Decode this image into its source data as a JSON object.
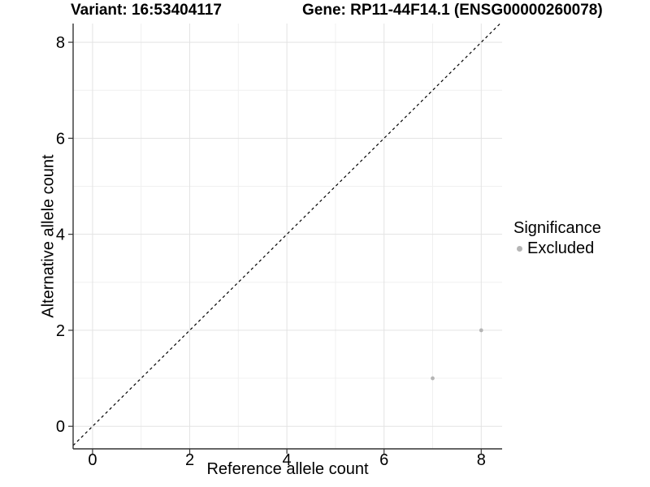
{
  "titles": {
    "variant": "Variant: 16:53404117",
    "gene": "Gene: RP11-44F14.1 (ENSG00000260078)"
  },
  "legend": {
    "title": "Significance",
    "items": [
      {
        "label": "Excluded",
        "color": "#b5b5b5"
      }
    ]
  },
  "colors": {
    "background": "#ffffff",
    "grid_major": "#e3e3e3",
    "grid_minor": "#f0f0f0",
    "axis": "#333333",
    "text": "#000000",
    "point": "#b5b5b5",
    "reference_line": "#000000"
  },
  "chart_data": {
    "type": "scatter",
    "title": "Variant: 16:53404117",
    "subtitle": "Gene: RP11-44F14.1 (ENSG00000260078)",
    "xlabel": "Reference allele count",
    "ylabel": "Alternative allele count",
    "xlim": [
      -0.4,
      8.43
    ],
    "ylim": [
      -0.47,
      8.39
    ],
    "xticks": [
      0,
      2,
      4,
      6,
      8
    ],
    "yticks": [
      0,
      2,
      4,
      6,
      8
    ],
    "x_minor": [
      1,
      3,
      5,
      7
    ],
    "y_minor": [
      1,
      3,
      5,
      7
    ],
    "grid": "major+minor",
    "legend_position": "right",
    "series": [
      {
        "name": "Excluded",
        "color": "#b5b5b5",
        "points": [
          [
            7,
            1
          ],
          [
            8,
            2
          ]
        ]
      }
    ],
    "reference_line": {
      "kind": "identity",
      "slope": 1,
      "intercept": 0,
      "style": "dashed",
      "color": "#000000"
    }
  }
}
